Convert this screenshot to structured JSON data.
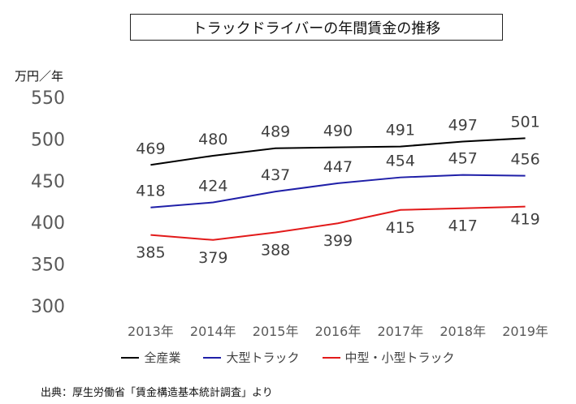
{
  "chart_data": {
    "type": "line",
    "title": "トラックドライバーの年間賃金の推移",
    "ylabel": "万円／年",
    "xlabel": "",
    "categories": [
      "2013年",
      "2014年",
      "2015年",
      "2016年",
      "2017年",
      "2018年",
      "2019年"
    ],
    "ylim": [
      300,
      550
    ],
    "yticks": [
      300,
      350,
      400,
      450,
      500,
      550
    ],
    "grid": false,
    "legend_position": "bottom",
    "series": [
      {
        "name": "全産業",
        "color": "#000000",
        "values": [
          469,
          480,
          489,
          490,
          491,
          497,
          501
        ]
      },
      {
        "name": "大型トラック",
        "color": "#1f1fa8",
        "values": [
          418,
          424,
          437,
          447,
          454,
          457,
          456
        ]
      },
      {
        "name": "中型・小型トラック",
        "color": "#e21a1a",
        "values": [
          385,
          379,
          388,
          399,
          415,
          417,
          419
        ]
      }
    ]
  },
  "source_note": "出典：厚生労働省「賃金構造基本統計調査」より"
}
